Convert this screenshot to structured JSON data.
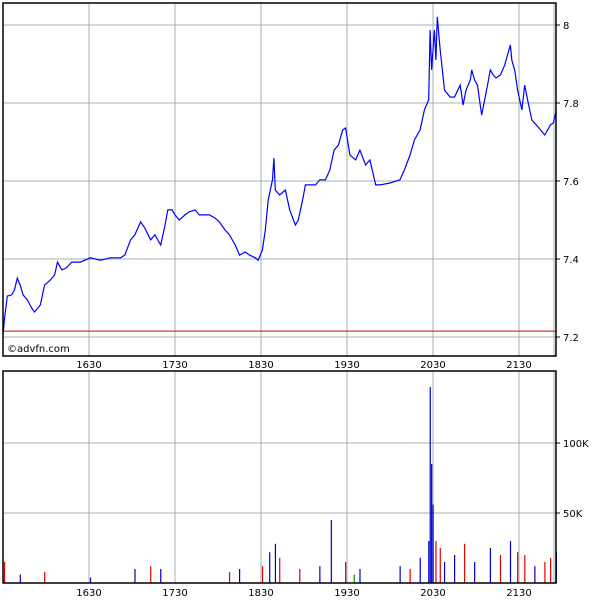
{
  "watermark": "©advfn.com",
  "colors": {
    "price_line": "#0000ff",
    "reference_line": "#e00000",
    "grid": "#a0b0b0",
    "vol_up": "#0000cc",
    "vol_down": "#e00000",
    "vol_neutral": "#00a000"
  },
  "chart_data": [
    {
      "type": "line",
      "title": "",
      "xlabel": "",
      "ylabel": "",
      "grid": true,
      "x_ticks": [
        "1630",
        "1730",
        "1830",
        "1930",
        "2030",
        "2130"
      ],
      "y_ticks": [
        "7.2",
        "7.4",
        "7.6",
        "7.8",
        "8"
      ],
      "xlim": [
        "15:30",
        "21:56"
      ],
      "ylim": [
        7.19,
        8.04
      ],
      "reference_line": 7.215,
      "points": [
        [
          "15:30",
          7.205
        ],
        [
          "15:31",
          7.244
        ],
        [
          "15:33",
          7.305
        ],
        [
          "15:36",
          7.308
        ],
        [
          "15:38",
          7.321
        ],
        [
          "15:40",
          7.351
        ],
        [
          "15:42",
          7.333
        ],
        [
          "15:44",
          7.308
        ],
        [
          "15:47",
          7.295
        ],
        [
          "15:50",
          7.274
        ],
        [
          "15:52",
          7.264
        ],
        [
          "15:56",
          7.282
        ],
        [
          "15:59",
          7.333
        ],
        [
          "16:03",
          7.346
        ],
        [
          "16:06",
          7.359
        ],
        [
          "16:08",
          7.392
        ],
        [
          "16:11",
          7.372
        ],
        [
          "16:14",
          7.377
        ],
        [
          "16:18",
          7.392
        ],
        [
          "16:24",
          7.392
        ],
        [
          "16:31",
          7.403
        ],
        [
          "16:38",
          7.397
        ],
        [
          "16:45",
          7.403
        ],
        [
          "16:52",
          7.403
        ],
        [
          "16:55",
          7.41
        ],
        [
          "16:59",
          7.449
        ],
        [
          "17:02",
          7.462
        ],
        [
          "17:06",
          7.495
        ],
        [
          "17:09",
          7.479
        ],
        [
          "17:13",
          7.449
        ],
        [
          "17:16",
          7.462
        ],
        [
          "17:20",
          7.436
        ],
        [
          "17:23",
          7.487
        ],
        [
          "17:25",
          7.526
        ],
        [
          "17:28",
          7.526
        ],
        [
          "17:30",
          7.513
        ],
        [
          "17:33",
          7.5
        ],
        [
          "17:37",
          7.513
        ],
        [
          "17:40",
          7.521
        ],
        [
          "17:44",
          7.526
        ],
        [
          "17:47",
          7.513
        ],
        [
          "17:51",
          7.513
        ],
        [
          "17:54",
          7.513
        ],
        [
          "17:58",
          7.505
        ],
        [
          "18:01",
          7.495
        ],
        [
          "18:05",
          7.474
        ],
        [
          "18:08",
          7.462
        ],
        [
          "18:12",
          7.436
        ],
        [
          "18:15",
          7.41
        ],
        [
          "18:19",
          7.418
        ],
        [
          "18:22",
          7.41
        ],
        [
          "18:26",
          7.403
        ],
        [
          "18:28",
          7.397
        ],
        [
          "18:31",
          7.423
        ],
        [
          "18:33",
          7.474
        ],
        [
          "18:35",
          7.551
        ],
        [
          "18:38",
          7.603
        ],
        [
          "18:39",
          7.659
        ],
        [
          "18:40",
          7.577
        ],
        [
          "18:43",
          7.564
        ],
        [
          "18:47",
          7.577
        ],
        [
          "18:50",
          7.526
        ],
        [
          "18:54",
          7.487
        ],
        [
          "18:56",
          7.5
        ],
        [
          "18:59",
          7.551
        ],
        [
          "19:01",
          7.59
        ],
        [
          "19:04",
          7.59
        ],
        [
          "19:08",
          7.59
        ],
        [
          "19:11",
          7.603
        ],
        [
          "19:15",
          7.603
        ],
        [
          "19:18",
          7.628
        ],
        [
          "19:21",
          7.679
        ],
        [
          "19:24",
          7.692
        ],
        [
          "19:27",
          7.731
        ],
        [
          "19:29",
          7.736
        ],
        [
          "19:32",
          7.667
        ],
        [
          "19:36",
          7.654
        ],
        [
          "19:39",
          7.679
        ],
        [
          "19:43",
          7.641
        ],
        [
          "19:46",
          7.654
        ],
        [
          "19:50",
          7.59
        ],
        [
          "19:53",
          7.59
        ],
        [
          "20:00",
          7.595
        ],
        [
          "20:07",
          7.603
        ],
        [
          "20:10",
          7.628
        ],
        [
          "20:14",
          7.667
        ],
        [
          "20:17",
          7.705
        ],
        [
          "20:21",
          7.731
        ],
        [
          "20:24",
          7.782
        ],
        [
          "20:27",
          7.808
        ],
        [
          "20:28",
          7.987
        ],
        [
          "20:29",
          7.885
        ],
        [
          "20:31",
          7.987
        ],
        [
          "20:32",
          7.91
        ],
        [
          "20:33",
          8.021
        ],
        [
          "20:35",
          7.936
        ],
        [
          "20:38",
          7.833
        ],
        [
          "20:42",
          7.815
        ],
        [
          "20:45",
          7.815
        ],
        [
          "20:49",
          7.846
        ],
        [
          "20:51",
          7.795
        ],
        [
          "20:53",
          7.833
        ],
        [
          "20:56",
          7.859
        ],
        [
          "20:57",
          7.885
        ],
        [
          "20:59",
          7.859
        ],
        [
          "21:01",
          7.846
        ],
        [
          "21:04",
          7.769
        ],
        [
          "21:08",
          7.846
        ],
        [
          "21:10",
          7.885
        ],
        [
          "21:12",
          7.872
        ],
        [
          "21:14",
          7.864
        ],
        [
          "21:17",
          7.872
        ],
        [
          "21:20",
          7.897
        ],
        [
          "21:22",
          7.923
        ],
        [
          "21:24",
          7.949
        ],
        [
          "21:25",
          7.91
        ],
        [
          "21:27",
          7.885
        ],
        [
          "21:29",
          7.833
        ],
        [
          "21:32",
          7.782
        ],
        [
          "21:34",
          7.846
        ],
        [
          "21:36",
          7.808
        ],
        [
          "21:39",
          7.756
        ],
        [
          "21:42",
          7.744
        ],
        [
          "21:45",
          7.731
        ],
        [
          "21:48",
          7.718
        ],
        [
          "21:52",
          7.744
        ],
        [
          "21:54",
          7.749
        ],
        [
          "21:56",
          7.782
        ]
      ]
    },
    {
      "type": "bar",
      "title": "",
      "xlabel": "",
      "ylabel": "",
      "grid": true,
      "x_ticks": [
        "1630",
        "1730",
        "1830",
        "1930",
        "2030",
        "2130"
      ],
      "y_ticks": [
        {
          "label": "50K",
          "value": 50000
        },
        {
          "label": "100K",
          "value": 100000
        }
      ],
      "ylim": [
        0,
        152000
      ],
      "bars": [
        [
          "15:31",
          15000,
          "down"
        ],
        [
          "15:42",
          6000,
          "up"
        ],
        [
          "15:59",
          8000,
          "down"
        ],
        [
          "16:31",
          4000,
          "up"
        ],
        [
          "17:02",
          10000,
          "up"
        ],
        [
          "17:13",
          12000,
          "down"
        ],
        [
          "17:20",
          10000,
          "up"
        ],
        [
          "18:08",
          8000,
          "down"
        ],
        [
          "18:15",
          10000,
          "up"
        ],
        [
          "18:31",
          12000,
          "down"
        ],
        [
          "18:36",
          22000,
          "up"
        ],
        [
          "18:40",
          28000,
          "up"
        ],
        [
          "18:43",
          18000,
          "down"
        ],
        [
          "18:57",
          10000,
          "down"
        ],
        [
          "19:11",
          12000,
          "up"
        ],
        [
          "19:19",
          45000,
          "up"
        ],
        [
          "19:29",
          15000,
          "down"
        ],
        [
          "19:35",
          6000,
          "neutral"
        ],
        [
          "19:39",
          10000,
          "up"
        ],
        [
          "20:07",
          12000,
          "up"
        ],
        [
          "20:14",
          10000,
          "down"
        ],
        [
          "20:21",
          18000,
          "up"
        ],
        [
          "20:27",
          30000,
          "up"
        ],
        [
          "20:28",
          140000,
          "up"
        ],
        [
          "20:29",
          85000,
          "up"
        ],
        [
          "20:30",
          56000,
          "up"
        ],
        [
          "20:32",
          30000,
          "down"
        ],
        [
          "20:35",
          25000,
          "down"
        ],
        [
          "20:38",
          15000,
          "up"
        ],
        [
          "20:45",
          20000,
          "up"
        ],
        [
          "20:52",
          28000,
          "down"
        ],
        [
          "20:59",
          15000,
          "up"
        ],
        [
          "21:10",
          25000,
          "up"
        ],
        [
          "21:17",
          20000,
          "down"
        ],
        [
          "21:24",
          30000,
          "up"
        ],
        [
          "21:29",
          22000,
          "down"
        ],
        [
          "21:34",
          20000,
          "down"
        ],
        [
          "21:41",
          12000,
          "up"
        ],
        [
          "21:48",
          15000,
          "down"
        ],
        [
          "21:52",
          18000,
          "down"
        ],
        [
          "21:56",
          22000,
          "up"
        ]
      ]
    }
  ]
}
